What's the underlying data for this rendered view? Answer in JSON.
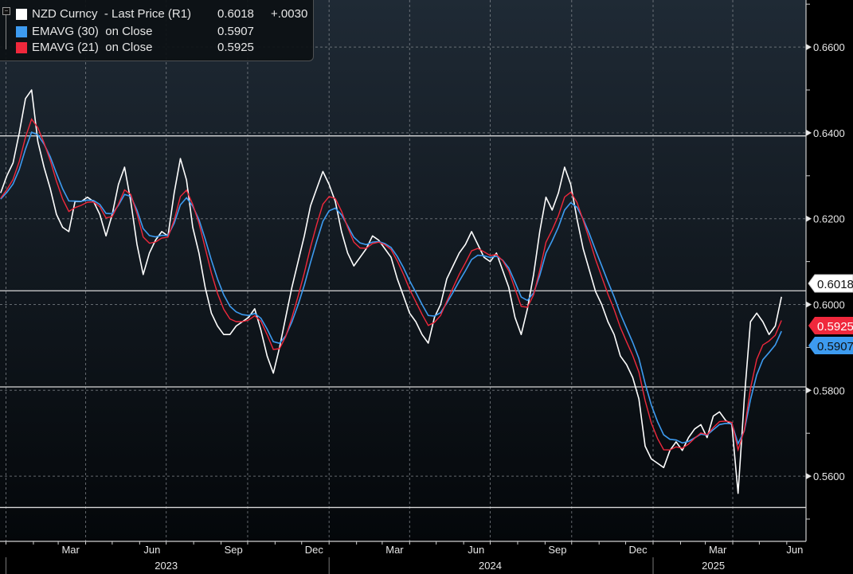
{
  "legend": {
    "collapse_symbol": "−",
    "items": [
      {
        "label": "NZD Curncy  - Last Price (R1)",
        "value": "0.6018",
        "change": "+.0030",
        "color": "#ffffff"
      },
      {
        "label": "EMAVG (30)  on Close",
        "value": "0.5907",
        "change": "",
        "color": "#3d9bf0"
      },
      {
        "label": "EMAVG (21)  on Close",
        "value": "0.5925",
        "change": "",
        "color": "#f0283c"
      }
    ]
  },
  "chart_data": {
    "type": "line",
    "title": "",
    "xlabel": "",
    "ylabel": "",
    "ylim": [
      0.548,
      0.67
    ],
    "y_ticks": [
      "0.6600",
      "0.6400",
      "0.6200",
      "0.6000",
      "0.5800",
      "0.5600"
    ],
    "y_tick_values": [
      0.66,
      0.64,
      0.62,
      0.6,
      0.58,
      0.56
    ],
    "x_month_labels": [
      {
        "label": "Mar",
        "date": "2023-03-15"
      },
      {
        "label": "Jun",
        "date": "2023-06-15"
      },
      {
        "label": "Sep",
        "date": "2023-09-15"
      },
      {
        "label": "Dec",
        "date": "2023-12-15"
      },
      {
        "label": "Mar",
        "date": "2024-03-15"
      },
      {
        "label": "Jun",
        "date": "2024-06-15"
      },
      {
        "label": "Sep",
        "date": "2024-09-15"
      },
      {
        "label": "Dec",
        "date": "2024-12-15"
      },
      {
        "label": "Mar",
        "date": "2025-03-15"
      },
      {
        "label": "Jun",
        "date": "2025-06-10"
      }
    ],
    "x_year_labels": [
      {
        "label": "2023",
        "date": "2023-07-01"
      },
      {
        "label": "2024",
        "date": "2024-07-01"
      },
      {
        "label": "2025",
        "date": "2025-03-10"
      }
    ],
    "grid": true,
    "legend_position": "top-left",
    "horizontal_lines": [
      0.6393,
      0.6032,
      0.5808,
      0.5527
    ],
    "last_value_tags": [
      {
        "value": "0.6018",
        "color": "#ffffff",
        "text_color": "#111111"
      },
      {
        "value": "0.5925",
        "color": "#f0283c",
        "text_color": "#ffffff"
      },
      {
        "value": "0.5907",
        "color": "#3d9bf0",
        "text_color": "#111111"
      }
    ],
    "dates": [
      "2022-12-26",
      "2023-01-02",
      "2023-01-09",
      "2023-01-16",
      "2023-01-23",
      "2023-01-30",
      "2023-02-06",
      "2023-02-13",
      "2023-02-20",
      "2023-02-27",
      "2023-03-06",
      "2023-03-13",
      "2023-03-20",
      "2023-03-27",
      "2023-04-03",
      "2023-04-10",
      "2023-04-17",
      "2023-04-24",
      "2023-05-01",
      "2023-05-08",
      "2023-05-15",
      "2023-05-22",
      "2023-05-29",
      "2023-06-05",
      "2023-06-12",
      "2023-06-19",
      "2023-06-26",
      "2023-07-03",
      "2023-07-10",
      "2023-07-17",
      "2023-07-24",
      "2023-07-31",
      "2023-08-07",
      "2023-08-14",
      "2023-08-21",
      "2023-08-28",
      "2023-09-04",
      "2023-09-11",
      "2023-09-18",
      "2023-09-25",
      "2023-10-02",
      "2023-10-09",
      "2023-10-16",
      "2023-10-23",
      "2023-10-30",
      "2023-11-06",
      "2023-11-13",
      "2023-11-20",
      "2023-11-27",
      "2023-12-04",
      "2023-12-11",
      "2023-12-18",
      "2023-12-25",
      "2024-01-01",
      "2024-01-08",
      "2024-01-15",
      "2024-01-22",
      "2024-01-29",
      "2024-02-05",
      "2024-02-12",
      "2024-02-19",
      "2024-02-26",
      "2024-03-04",
      "2024-03-11",
      "2024-03-18",
      "2024-03-25",
      "2024-04-01",
      "2024-04-08",
      "2024-04-15",
      "2024-04-22",
      "2024-04-29",
      "2024-05-06",
      "2024-05-13",
      "2024-05-20",
      "2024-05-27",
      "2024-06-03",
      "2024-06-10",
      "2024-06-17",
      "2024-06-24",
      "2024-07-01",
      "2024-07-08",
      "2024-07-15",
      "2024-07-22",
      "2024-07-29",
      "2024-08-05",
      "2024-08-12",
      "2024-08-19",
      "2024-08-26",
      "2024-09-02",
      "2024-09-09",
      "2024-09-16",
      "2024-09-23",
      "2024-09-30",
      "2024-10-07",
      "2024-10-14",
      "2024-10-21",
      "2024-10-28",
      "2024-11-04",
      "2024-11-11",
      "2024-11-18",
      "2024-11-25",
      "2024-12-02",
      "2024-12-09",
      "2024-12-16",
      "2024-12-23",
      "2024-12-30",
      "2025-01-06",
      "2025-01-13",
      "2025-01-20",
      "2025-01-27",
      "2025-02-03",
      "2025-02-10",
      "2025-02-17",
      "2025-02-24",
      "2025-03-03",
      "2025-03-10",
      "2025-03-17",
      "2025-03-24",
      "2025-03-31",
      "2025-04-07",
      "2025-04-14",
      "2025-04-21",
      "2025-04-28",
      "2025-05-05",
      "2025-05-12",
      "2025-05-19",
      "2025-05-26"
    ],
    "series": [
      {
        "name": "NZD Curncy - Last Price",
        "color": "#ffffff",
        "values": [
          0.626,
          0.63,
          0.633,
          0.64,
          0.648,
          0.65,
          0.638,
          0.632,
          0.627,
          0.621,
          0.618,
          0.617,
          0.624,
          0.624,
          0.625,
          0.624,
          0.621,
          0.616,
          0.621,
          0.628,
          0.632,
          0.624,
          0.614,
          0.607,
          0.612,
          0.615,
          0.617,
          0.616,
          0.626,
          0.634,
          0.629,
          0.618,
          0.612,
          0.604,
          0.598,
          0.595,
          0.593,
          0.593,
          0.595,
          0.596,
          0.597,
          0.599,
          0.594,
          0.588,
          0.584,
          0.59,
          0.597,
          0.604,
          0.61,
          0.616,
          0.623,
          0.627,
          0.631,
          0.628,
          0.624,
          0.617,
          0.612,
          0.609,
          0.611,
          0.613,
          0.616,
          0.615,
          0.613,
          0.611,
          0.606,
          0.602,
          0.598,
          0.596,
          0.593,
          0.591,
          0.597,
          0.6,
          0.606,
          0.609,
          0.612,
          0.614,
          0.617,
          0.614,
          0.611,
          0.61,
          0.612,
          0.608,
          0.604,
          0.597,
          0.593,
          0.599,
          0.607,
          0.617,
          0.625,
          0.622,
          0.626,
          0.632,
          0.628,
          0.62,
          0.613,
          0.608,
          0.603,
          0.6,
          0.596,
          0.593,
          0.588,
          0.586,
          0.583,
          0.578,
          0.567,
          0.564,
          0.563,
          0.562,
          0.566,
          0.568,
          0.566,
          0.569,
          0.571,
          0.572,
          0.569,
          0.574,
          0.575,
          0.573,
          0.572,
          0.556,
          0.578,
          0.596,
          0.598,
          0.596,
          0.593,
          0.595,
          0.6018
        ]
      }
    ]
  }
}
